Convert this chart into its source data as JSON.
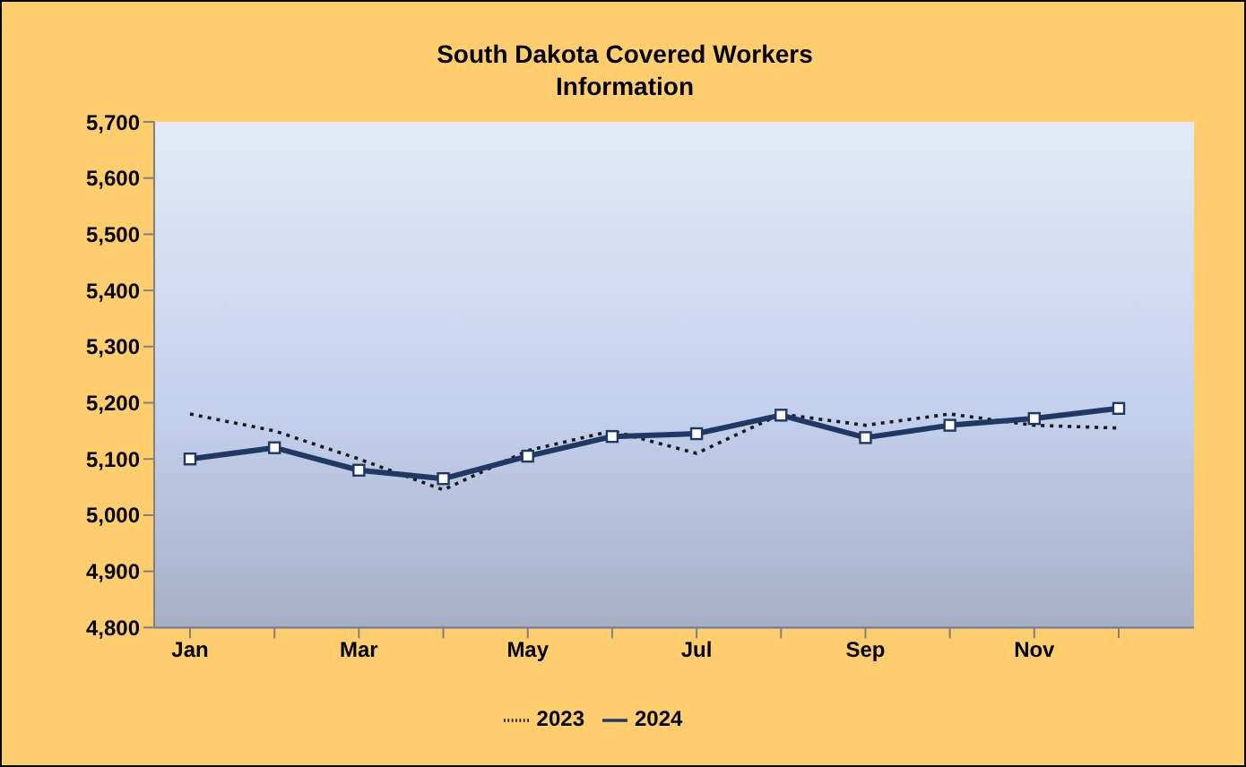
{
  "chart_data": {
    "type": "line",
    "title": "South Dakota Covered Workers\nInformation",
    "categories": [
      "Jan",
      null,
      "Mar",
      null,
      "May",
      null,
      "Jul",
      null,
      "Sep",
      null,
      "Nov",
      null
    ],
    "series": [
      {
        "name": "2023",
        "color": "#1a1a1a",
        "line_style": "dotted",
        "marker": "none",
        "values": [
          5180,
          5150,
          5100,
          5045,
          5115,
          5150,
          5110,
          5180,
          5160,
          5180,
          5160,
          5155
        ]
      },
      {
        "name": "2024",
        "color": "#1f3864",
        "line_style": "solid",
        "marker": "square",
        "values": [
          5100,
          5120,
          5080,
          5065,
          5105,
          5140,
          5145,
          5178,
          5138,
          5160,
          5172,
          5190
        ]
      }
    ],
    "ylim": [
      4800,
      5700
    ],
    "yticks": [
      {
        "value": 4800,
        "label": "4,800"
      },
      {
        "value": 4900,
        "label": "4,900"
      },
      {
        "value": 5000,
        "label": "5,000"
      },
      {
        "value": 5100,
        "label": "5,100"
      },
      {
        "value": 5200,
        "label": "5,200"
      },
      {
        "value": 5300,
        "label": "5,300"
      },
      {
        "value": 5400,
        "label": "5,400"
      },
      {
        "value": 5500,
        "label": "5,500"
      },
      {
        "value": 5600,
        "label": "5,600"
      },
      {
        "value": 5700,
        "label": "5,700"
      }
    ],
    "grid": false,
    "legend": "bottom"
  }
}
